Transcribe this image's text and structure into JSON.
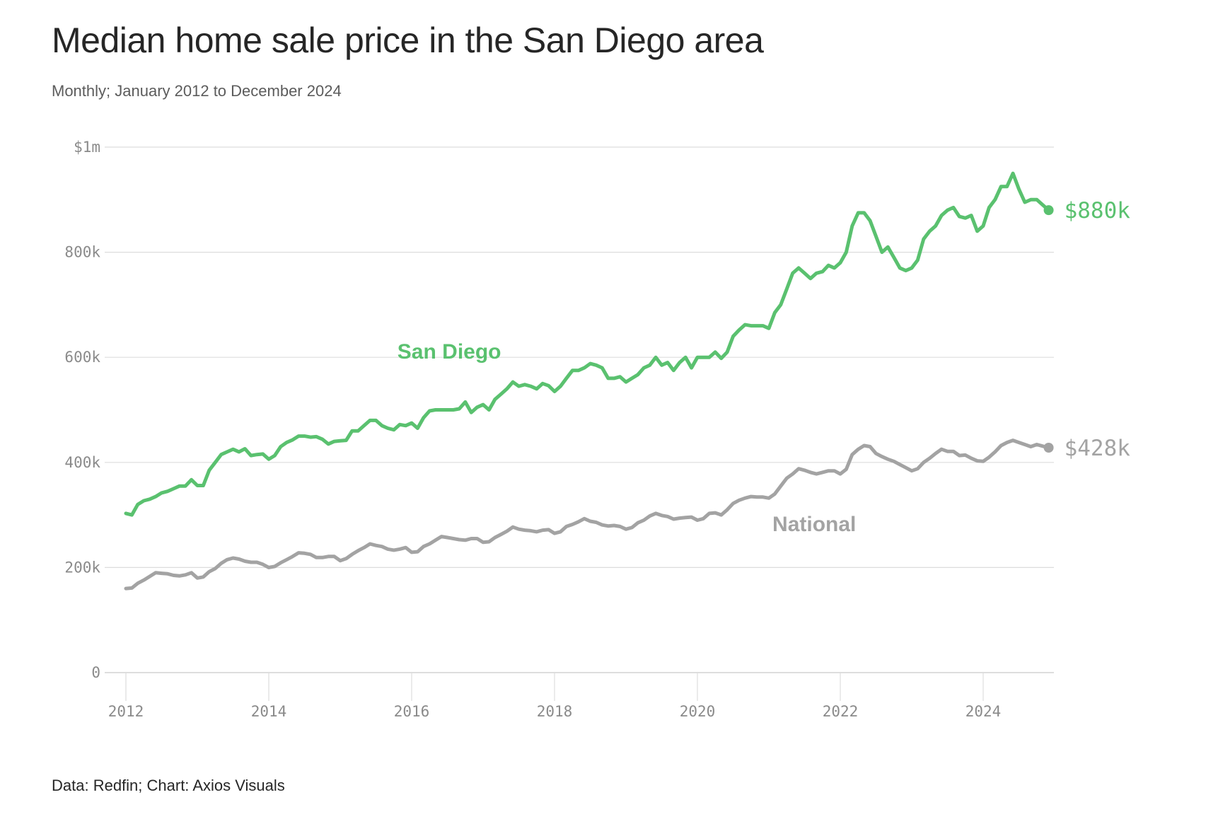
{
  "title": "Median home sale price in the San Diego area",
  "subtitle": "Monthly; January 2012 to December 2024",
  "footer": "Data: Redfin; Chart: Axios Visuals",
  "colors": {
    "san_diego": "#5ac16f",
    "national": "#a3a3a3",
    "grid": "#dddddd",
    "axis_text": "#8a8a8a"
  },
  "chart_data": {
    "type": "line",
    "title": "Median home sale price in the San Diego area",
    "subtitle": "Monthly; January 2012 to December 2024",
    "xlabel": "",
    "ylabel": "",
    "x_start": "2012-01",
    "x_end": "2024-12",
    "x_frequency": "monthly",
    "xlim": [
      2012.0,
      2025.0
    ],
    "ylim": [
      0,
      1000000
    ],
    "grid": true,
    "x_ticks": [
      2012,
      2014,
      2016,
      2018,
      2020,
      2022,
      2024
    ],
    "x_tick_labels": [
      "2012",
      "2014",
      "2016",
      "2018",
      "2020",
      "2022",
      "2024"
    ],
    "y_ticks": [
      0,
      200000,
      400000,
      600000,
      800000,
      1000000
    ],
    "y_tick_labels": [
      "0",
      "200k",
      "400k",
      "600k",
      "800k",
      "$1m"
    ],
    "legend": "inline labels",
    "series": [
      {
        "name": "San Diego",
        "label": "San Diego",
        "end_label": "$880k",
        "color": "#5ac16f",
        "values_k": [
          303,
          300,
          320,
          327,
          330,
          335,
          342,
          345,
          350,
          355,
          355,
          367,
          356,
          356,
          385,
          400,
          415,
          420,
          425,
          420,
          426,
          413,
          415,
          416,
          406,
          413,
          430,
          438,
          443,
          450,
          450,
          448,
          449,
          444,
          435,
          440,
          441,
          442,
          460,
          460,
          470,
          480,
          480,
          470,
          465,
          462,
          472,
          470,
          475,
          465,
          485,
          498,
          500,
          500,
          500,
          500,
          502,
          515,
          495,
          505,
          510,
          500,
          520,
          530,
          540,
          553,
          545,
          548,
          545,
          540,
          550,
          546,
          535,
          545,
          560,
          575,
          575,
          580,
          588,
          585,
          580,
          560,
          560,
          563,
          553,
          560,
          567,
          580,
          585,
          600,
          585,
          590,
          575,
          590,
          600,
          580,
          600,
          600,
          600,
          610,
          598,
          610,
          640,
          652,
          662,
          660,
          660,
          660,
          655,
          685,
          700,
          730,
          760,
          770,
          760,
          750,
          760,
          763,
          775,
          770,
          780,
          800,
          850,
          875,
          875,
          860,
          830,
          800,
          810,
          790,
          770,
          765,
          770,
          785,
          825,
          840,
          850,
          870,
          880,
          885,
          868,
          865,
          870,
          840,
          850,
          885,
          900,
          925,
          925,
          950,
          920,
          895,
          900,
          900,
          890,
          880
        ]
      },
      {
        "name": "National",
        "label": "National",
        "end_label": "$428k",
        "color": "#a3a3a3",
        "values_k": [
          160,
          161,
          170,
          176,
          183,
          190,
          189,
          188,
          185,
          184,
          186,
          190,
          180,
          182,
          192,
          198,
          208,
          215,
          218,
          216,
          212,
          210,
          210,
          206,
          200,
          202,
          209,
          215,
          221,
          228,
          227,
          225,
          219,
          219,
          221,
          221,
          213,
          217,
          225,
          232,
          238,
          245,
          242,
          240,
          235,
          233,
          235,
          238,
          229,
          230,
          240,
          245,
          252,
          259,
          257,
          255,
          253,
          252,
          255,
          255,
          248,
          249,
          257,
          263,
          269,
          277,
          273,
          271,
          270,
          268,
          271,
          272,
          265,
          268,
          278,
          282,
          287,
          293,
          288,
          286,
          281,
          279,
          280,
          278,
          273,
          276,
          285,
          290,
          298,
          303,
          299,
          297,
          292,
          294,
          295,
          296,
          290,
          293,
          303,
          304,
          300,
          310,
          322,
          328,
          332,
          335,
          334,
          334,
          332,
          340,
          355,
          370,
          378,
          388,
          385,
          381,
          378,
          381,
          384,
          384,
          378,
          387,
          415,
          425,
          432,
          430,
          417,
          411,
          406,
          402,
          396,
          390,
          384,
          388,
          400,
          408,
          417,
          425,
          421,
          421,
          413,
          414,
          408,
          403,
          402,
          410,
          420,
          432,
          438,
          442,
          438,
          434,
          430,
          434,
          431,
          428
        ]
      }
    ],
    "annotations": [
      {
        "text": "San Diego",
        "series": "San Diego"
      },
      {
        "text": "National",
        "series": "National"
      },
      {
        "text": "$880k",
        "series": "San Diego",
        "position": "end"
      },
      {
        "text": "$428k",
        "series": "National",
        "position": "end"
      }
    ]
  }
}
